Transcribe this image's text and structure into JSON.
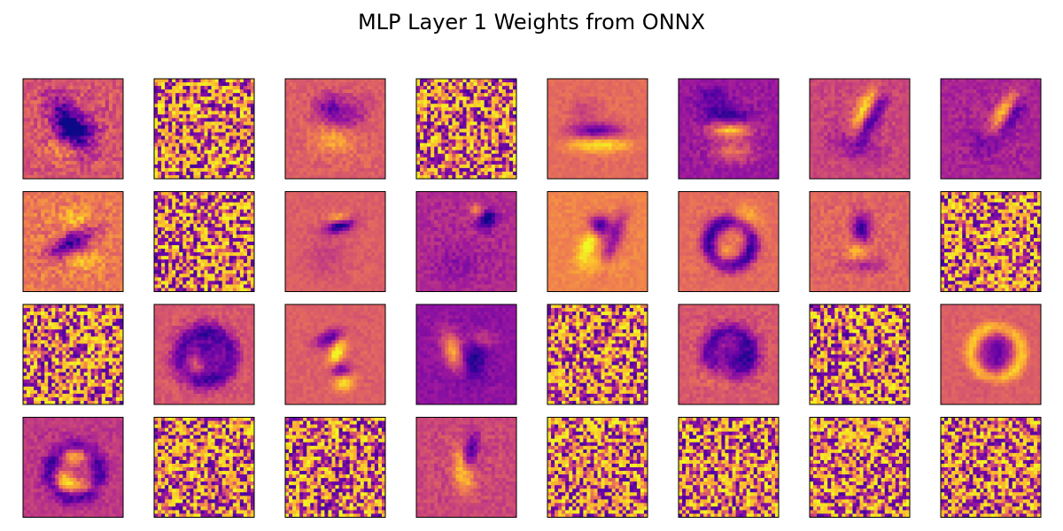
{
  "figure": {
    "title": "MLP Layer 1 Weights from ONNX"
  },
  "chart_data": {
    "type": "heatmap",
    "title": "MLP Layer 1 Weights from ONNX",
    "colormap": "plasma",
    "colormap_stops": [
      "#0d0887",
      "#5c01a6",
      "#9c179e",
      "#cc4778",
      "#ed7953",
      "#fdb42f",
      "#f0f921"
    ],
    "axes_visible": false,
    "grid": false,
    "legend": "none",
    "rows": 4,
    "cols": 8,
    "panel_resolution": [
      28,
      28
    ],
    "panels": [
      {
        "row": 1,
        "col": 1,
        "pattern": "structured",
        "shape": "digit-4 stroke, dark center"
      },
      {
        "row": 1,
        "col": 2,
        "pattern": "noise"
      },
      {
        "row": 1,
        "col": 3,
        "pattern": "structured",
        "shape": "blob, bright lower center"
      },
      {
        "row": 1,
        "col": 4,
        "pattern": "noise"
      },
      {
        "row": 1,
        "col": 5,
        "pattern": "structured",
        "shape": "horizontal dark band, bright lower edge"
      },
      {
        "row": 1,
        "col": 6,
        "pattern": "structured",
        "shape": "dark purple field, bright horizontal bands"
      },
      {
        "row": 1,
        "col": 7,
        "pattern": "structured",
        "shape": "diagonal stroke, bright upper"
      },
      {
        "row": 1,
        "col": 8,
        "pattern": "structured",
        "shape": "diagonal stroke, dark purple field"
      },
      {
        "row": 2,
        "col": 1,
        "pattern": "structured",
        "shape": "diagonal dark blob"
      },
      {
        "row": 2,
        "col": 2,
        "pattern": "noise"
      },
      {
        "row": 2,
        "col": 3,
        "pattern": "structured",
        "shape": "small dark stroke, bright top"
      },
      {
        "row": 2,
        "col": 4,
        "pattern": "structured",
        "shape": "purple field, dark upper spot"
      },
      {
        "row": 2,
        "col": 5,
        "pattern": "structured",
        "shape": "digit-9 stroke"
      },
      {
        "row": 2,
        "col": 6,
        "pattern": "structured",
        "shape": "digit-6 ring"
      },
      {
        "row": 2,
        "col": 7,
        "pattern": "structured",
        "shape": "small dark stroke, centered"
      },
      {
        "row": 2,
        "col": 8,
        "pattern": "noise"
      },
      {
        "row": 3,
        "col": 1,
        "pattern": "noise"
      },
      {
        "row": 3,
        "col": 2,
        "pattern": "structured",
        "shape": "ring, dark center"
      },
      {
        "row": 3,
        "col": 3,
        "pattern": "structured",
        "shape": "digit-7 stroke"
      },
      {
        "row": 3,
        "col": 4,
        "pattern": "structured",
        "shape": "purple field, bright left arc"
      },
      {
        "row": 3,
        "col": 5,
        "pattern": "noise"
      },
      {
        "row": 3,
        "col": 6,
        "pattern": "structured",
        "shape": "loop, dark center"
      },
      {
        "row": 3,
        "col": 7,
        "pattern": "noise"
      },
      {
        "row": 3,
        "col": 8,
        "pattern": "structured",
        "shape": "digit-0 oval"
      },
      {
        "row": 4,
        "col": 1,
        "pattern": "structured",
        "shape": "purple ring, bright arcs"
      },
      {
        "row": 4,
        "col": 2,
        "pattern": "noise"
      },
      {
        "row": 4,
        "col": 3,
        "pattern": "noise"
      },
      {
        "row": 4,
        "col": 4,
        "pattern": "structured",
        "shape": "purple stroke, bright center"
      },
      {
        "row": 4,
        "col": 5,
        "pattern": "noise"
      },
      {
        "row": 4,
        "col": 6,
        "pattern": "noise"
      },
      {
        "row": 4,
        "col": 7,
        "pattern": "noise"
      },
      {
        "row": 4,
        "col": 8,
        "pattern": "noise"
      }
    ]
  }
}
